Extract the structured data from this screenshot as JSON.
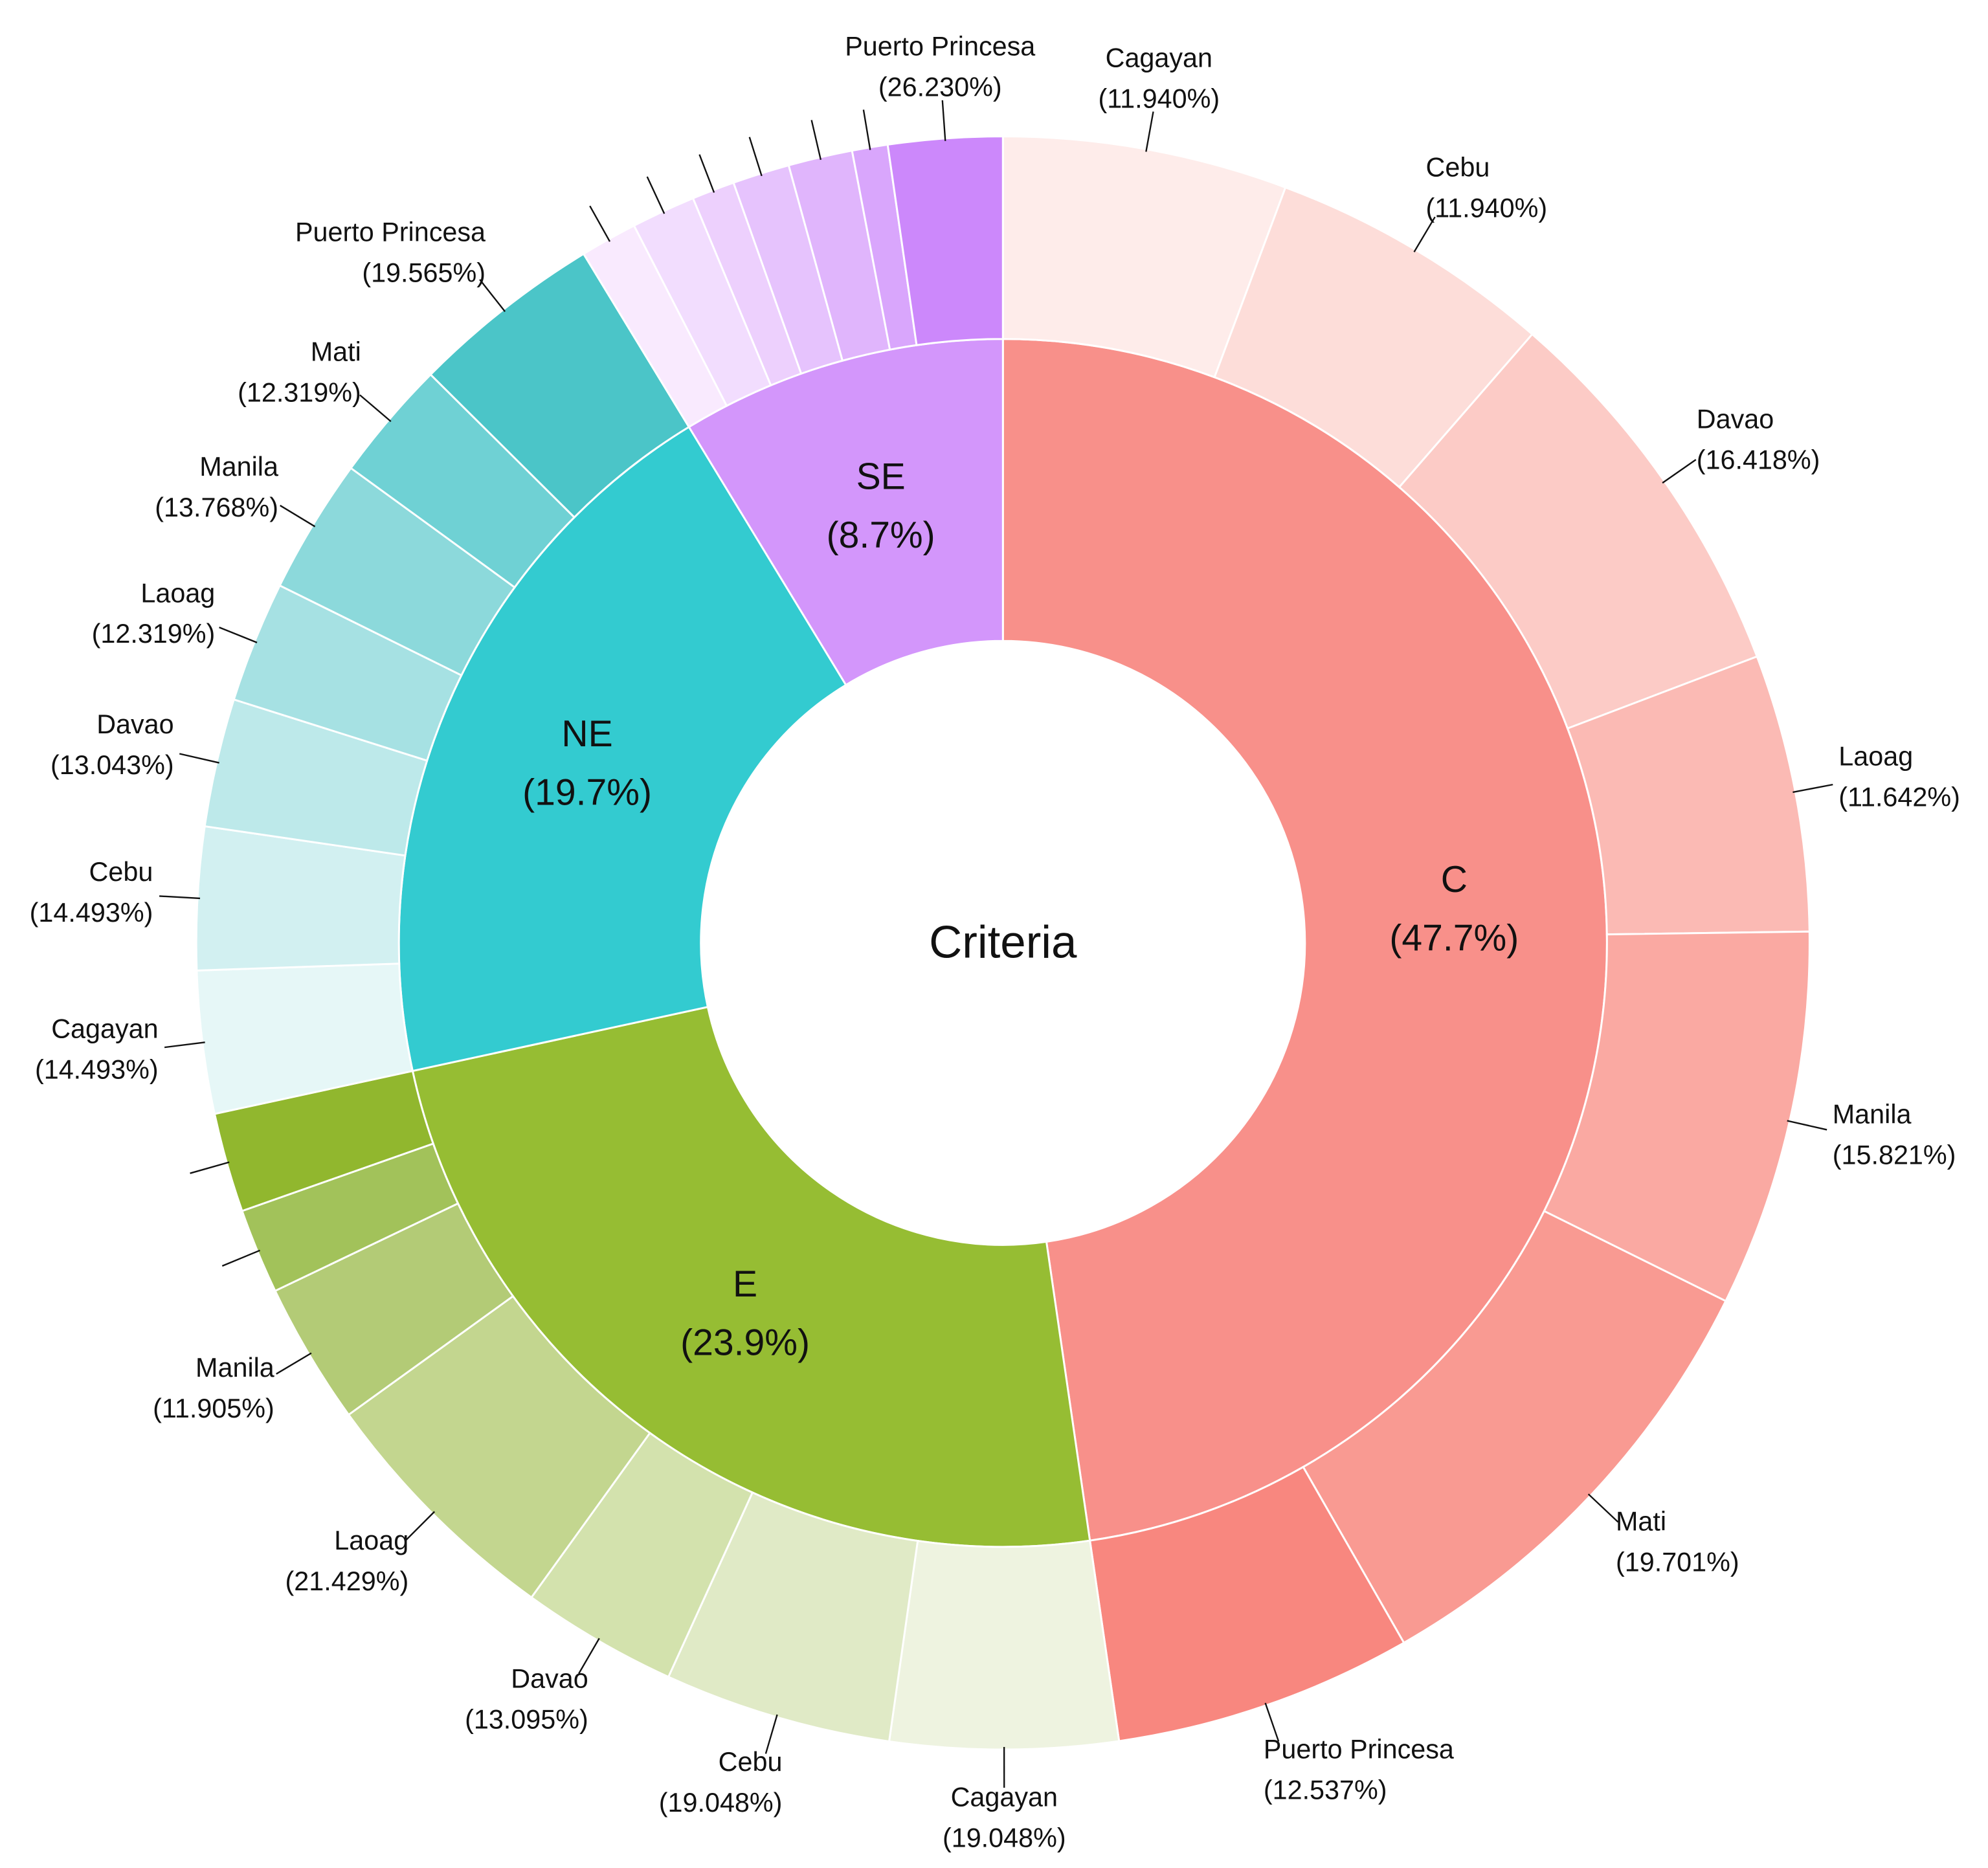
{
  "chart_data": {
    "type": "sunburst",
    "title": "Criteria",
    "groups": [
      {
        "name": "C",
        "value": 47.7,
        "value_label": "(47.7%)",
        "color": "#F8908A",
        "children": {
          "categories": [
            "Cagayan",
            "Cebu",
            "Davao",
            "Laoag",
            "Manila",
            "Mati",
            "Puerto Princesa"
          ],
          "values": [
            11.94,
            11.94,
            16.418,
            11.642,
            15.821,
            19.701,
            12.537
          ],
          "value_labels": [
            "(11.940%)",
            "(11.940%)",
            "(16.418%)",
            "(11.642%)",
            "(15.821%)",
            "(19.701%)",
            "(12.537%)"
          ],
          "colors": [
            "#FEECEA",
            "#FDDDD9",
            "#FCCBC6",
            "#FBBAB4",
            "#FAA9A2",
            "#F99A92",
            "#F8877F"
          ]
        }
      },
      {
        "name": "E",
        "value": 23.9,
        "value_label": "(23.9%)",
        "color": "#96BD33",
        "children": {
          "categories": [
            "Cagayan",
            "Cebu",
            "Davao",
            "Laoag",
            "Manila",
            null,
            null
          ],
          "values": [
            19.048,
            19.048,
            13.095,
            21.429,
            11.905,
            7.143,
            8.333
          ],
          "value_labels": [
            "(19.048%)",
            "(19.048%)",
            "(13.095%)",
            "(21.429%)",
            "(11.905%)",
            null,
            null
          ],
          "colors": [
            "#EEF3E0",
            "#E0EAC6",
            "#D3E2AD",
            "#C3D68F",
            "#B3CB76",
            "#A2C25A",
            "#91B72E"
          ]
        }
      },
      {
        "name": "NE",
        "value": 19.7,
        "value_label": "(19.7%)",
        "color": "#33CBD0",
        "children": {
          "categories": [
            "Cagayan",
            "Cebu",
            "Davao",
            "Laoag",
            "Manila",
            "Mati",
            "Puerto Princesa"
          ],
          "values": [
            14.493,
            14.493,
            13.043,
            12.319,
            13.768,
            12.319,
            19.565
          ],
          "value_labels": [
            "(14.493%)",
            "(14.493%)",
            "(13.043%)",
            "(12.319%)",
            "(13.768%)",
            "(12.319%)",
            "(19.565%)"
          ],
          "colors": [
            "#E6F7F7",
            "#D2F0F1",
            "#BDE9EA",
            "#A6E1E3",
            "#8CD9DB",
            "#6FD1D4",
            "#4BC5C8"
          ]
        }
      },
      {
        "name": "SE",
        "value": 8.7,
        "value_label": "(8.7%)",
        "color": "#D396FB",
        "children": {
          "categories": [
            null,
            null,
            null,
            null,
            null,
            null,
            "Puerto Princesa"
          ],
          "values": [
            13.115,
            14.754,
            9.836,
            13.115,
            14.754,
            8.197,
            26.23
          ],
          "value_labels": [
            null,
            null,
            null,
            null,
            null,
            null,
            "(26.230%)"
          ],
          "colors": [
            "#F9EAFE",
            "#F2DDFE",
            "#EDD0FD",
            "#E6C3FD",
            "#E0B5FC",
            "#D9A6FC",
            "#CC88FB"
          ]
        }
      }
    ]
  }
}
